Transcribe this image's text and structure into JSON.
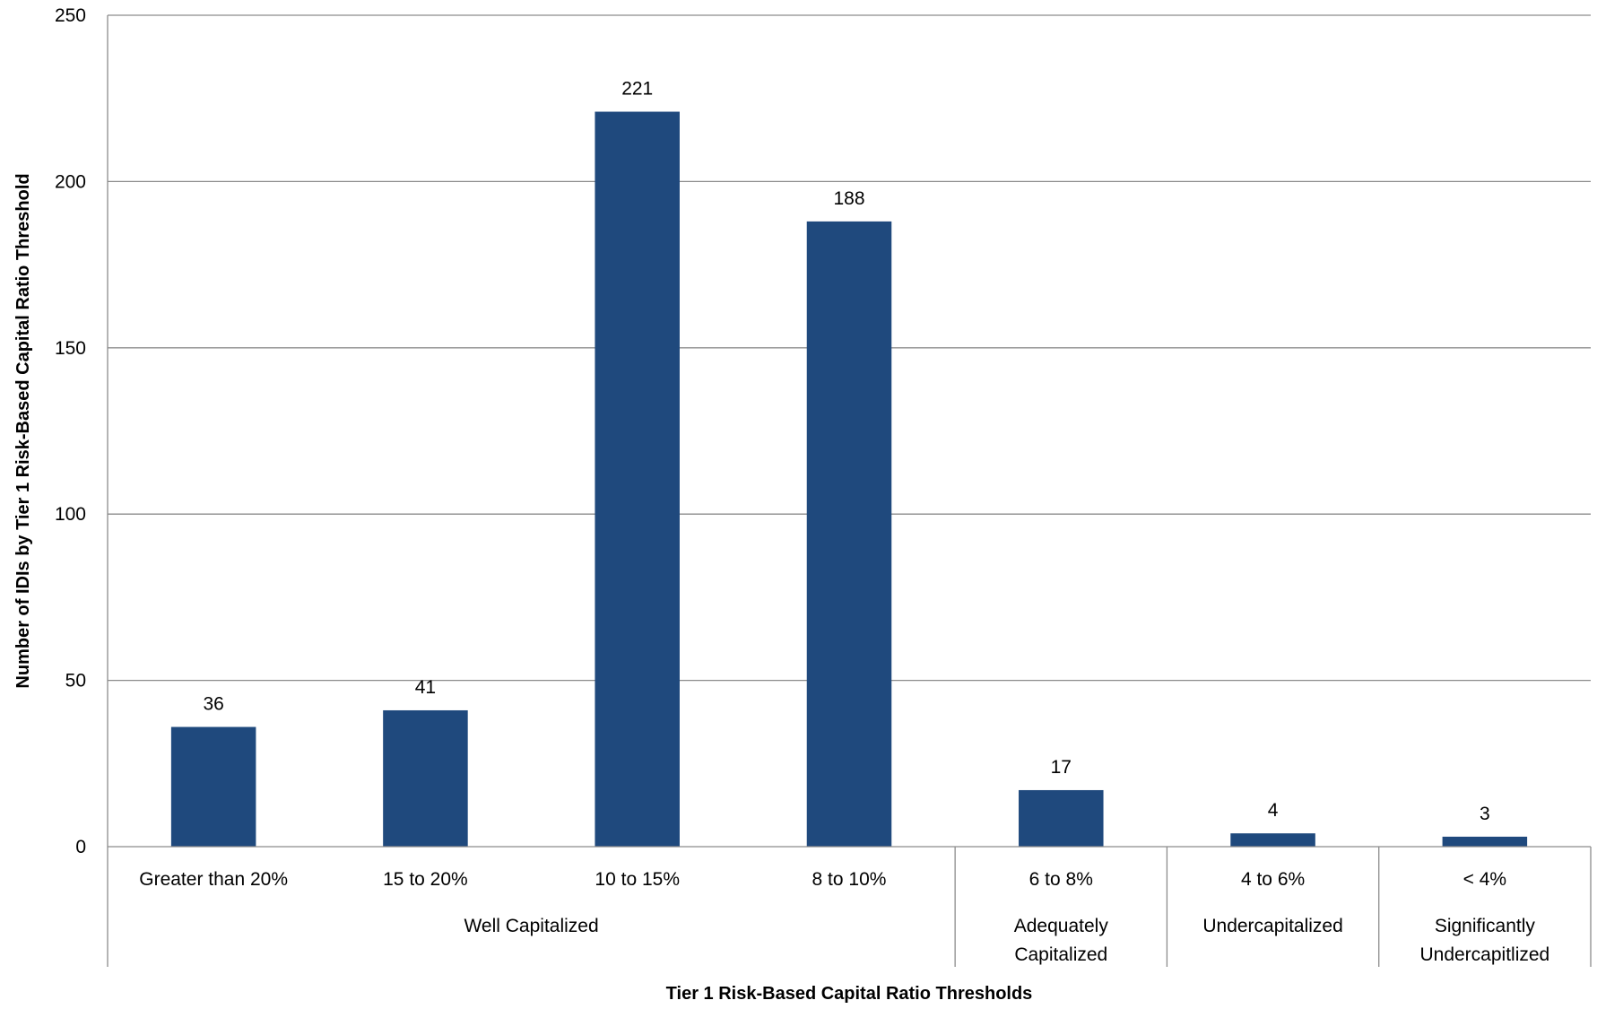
{
  "chart_data": {
    "type": "bar",
    "title": "",
    "xlabel": "Tier 1 Risk-Based Capital Ratio Thresholds",
    "ylabel": "Number of IDIs by Tier 1 Risk-Based Capital Ratio Threshold",
    "categories": [
      "Greater than 20%",
      "15 to 20%",
      "10 to 15%",
      "8 to 10%",
      "6 to 8%",
      "4 to 6%",
      "< 4%"
    ],
    "values": [
      36,
      41,
      221,
      188,
      17,
      4,
      3
    ],
    "data_labels": [
      "36",
      "41",
      "221",
      "188",
      "17",
      "4",
      "3"
    ],
    "ylim": [
      0,
      250
    ],
    "yticks": [
      0,
      50,
      100,
      150,
      200,
      250
    ],
    "ytick_labels": [
      "0",
      "50",
      "100",
      "150",
      "200",
      "250"
    ],
    "groups": [
      {
        "label_lines": [
          "Well Capitalized"
        ],
        "category_count": 4
      },
      {
        "label_lines": [
          "Adequately",
          "Capitalized"
        ],
        "category_count": 1
      },
      {
        "label_lines": [
          "Undercapitalized"
        ],
        "category_count": 1
      },
      {
        "label_lines": [
          "Significantly",
          "Undercapitlized"
        ],
        "category_count": 1
      }
    ],
    "grid": true,
    "legend": "none",
    "colors": {
      "bar": "#1F497D",
      "grid": "#8C8C8C",
      "axis": "#8C8C8C",
      "text": "#000000"
    }
  }
}
